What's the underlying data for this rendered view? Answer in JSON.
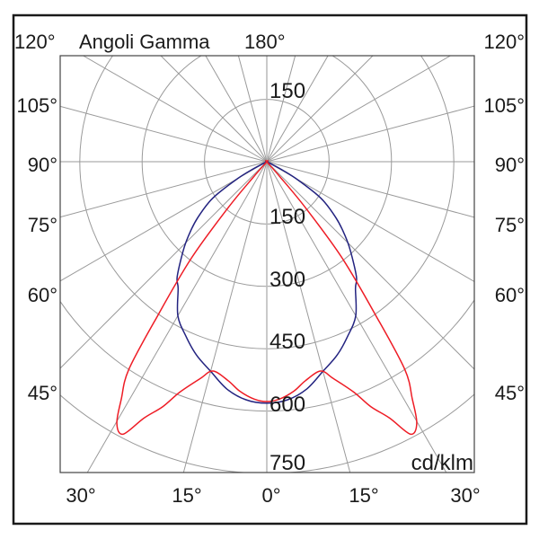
{
  "chart_data": {
    "type": "polar-line",
    "title": "Angoli Gamma",
    "unit_label": "cd/klm",
    "symmetric": true,
    "radial_ticks": [
      150,
      300,
      450,
      600,
      750
    ],
    "radial_top_label": "150",
    "radial_labels": [
      "150",
      "300",
      "450",
      "600",
      "750"
    ],
    "rmax": 750,
    "angle_step_deg": 15,
    "grid": true,
    "angle_labels": {
      "top_left": "120°",
      "top_center": "180°",
      "top_right": "120°",
      "left": [
        "105°",
        "90°",
        "75°",
        "60°",
        "45°"
      ],
      "right": [
        "105°",
        "90°",
        "75°",
        "60°",
        "45°"
      ],
      "bottom": [
        "30°",
        "15°",
        "0°",
        "15°",
        "30°"
      ]
    },
    "series": [
      {
        "color": "#232380",
        "gamma": [
          0,
          5,
          10,
          15,
          20,
          25,
          30,
          35,
          38,
          44,
          48,
          51,
          55,
          57,
          60,
          62,
          65,
          90
        ],
        "intensity": [
          581,
          575,
          555,
          522,
          495,
          462,
          428,
          372,
          350,
          286,
          245,
          214,
          170,
          139,
          80,
          40,
          0,
          0
        ]
      },
      {
        "color": "#ee1c25",
        "gamma": [
          0,
          3,
          6.7,
          10,
          14.4,
          17,
          20.7,
          23,
          25.6,
          27.8,
          29.8,
          31.5,
          33.6,
          35.3,
          38,
          40,
          41,
          43,
          90
        ],
        "intensity": [
          577,
          572,
          556,
          535,
          520,
          545,
          593,
          640,
          684,
          741,
          726,
          670,
          600,
          456,
          296,
          147,
          50,
          0,
          0
        ]
      }
    ]
  }
}
